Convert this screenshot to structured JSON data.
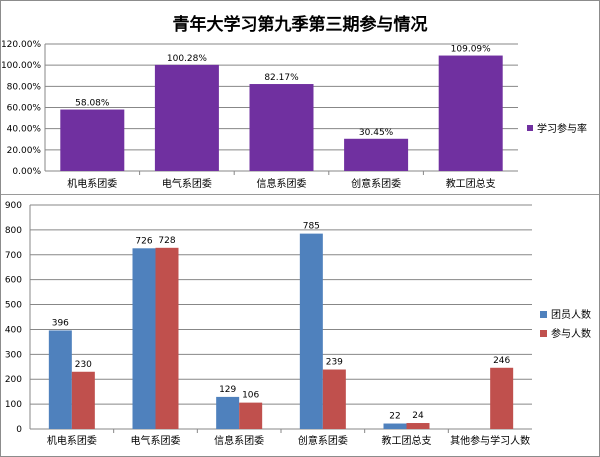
{
  "title": "青年大学习第九季第三期参与情况",
  "colors": {
    "purple": "#7030A0",
    "blue": "#4F81BD",
    "red": "#C0504D",
    "grid": "#878787"
  },
  "chart_data": [
    {
      "type": "bar",
      "title": "青年大学习第九季第三期参与情况",
      "categories": [
        "机电系团委",
        "电气系团委",
        "信息系团委",
        "创意系团委",
        "教工团总支"
      ],
      "series": [
        {
          "name": "学习参与率",
          "values": [
            58.08,
            100.28,
            82.17,
            30.45,
            109.09
          ],
          "labels": [
            "58.08%",
            "100.28%",
            "82.17%",
            "30.45%",
            "109.09%"
          ]
        }
      ],
      "ylim": [
        0,
        120
      ],
      "yticks": [
        "0.00%",
        "20.00%",
        "40.00%",
        "60.00%",
        "80.00%",
        "100.00%",
        "120.00%"
      ],
      "legend": "right",
      "grid": true
    },
    {
      "type": "bar",
      "categories": [
        "机电系团委",
        "电气系团委",
        "信息系团委",
        "创意系团委",
        "教工团总支",
        "其他参与学习人数"
      ],
      "series": [
        {
          "name": "团员人数",
          "values": [
            396,
            726,
            129,
            785,
            22,
            null
          ],
          "labels": [
            "396",
            "726",
            "129",
            "785",
            "22",
            ""
          ]
        },
        {
          "name": "参与人数",
          "values": [
            230,
            728,
            106,
            239,
            24,
            246
          ],
          "labels": [
            "230",
            "728",
            "106",
            "239",
            "24",
            "246"
          ]
        }
      ],
      "ylim": [
        0,
        900
      ],
      "yticks": [
        "0",
        "100",
        "200",
        "300",
        "400",
        "500",
        "600",
        "700",
        "800",
        "900"
      ],
      "legend": "right",
      "grid": true
    }
  ]
}
